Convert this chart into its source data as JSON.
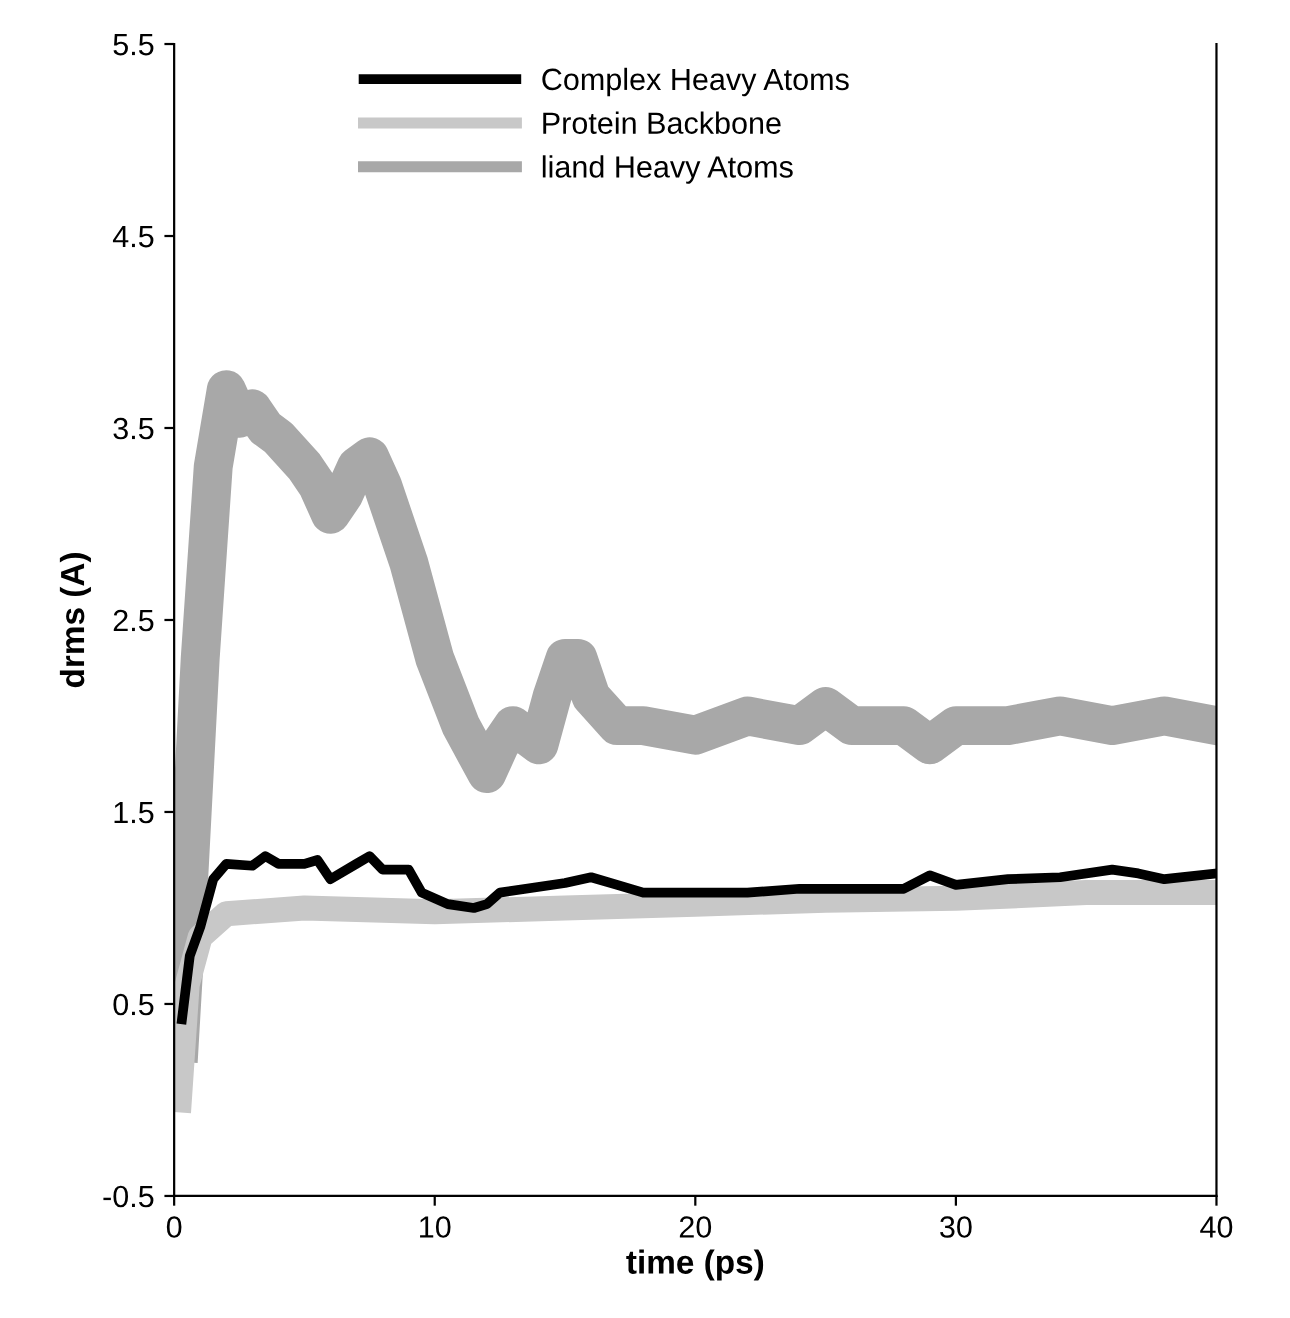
{
  "chart_data": {
    "type": "line",
    "xlabel": "time (ps)",
    "ylabel": "drms (A)",
    "xlim": [
      0,
      40
    ],
    "ylim": [
      -0.5,
      5.5
    ],
    "xticks": [
      0,
      10,
      20,
      30,
      40
    ],
    "yticks": [
      -0.5,
      0.5,
      1.5,
      2.5,
      3.5,
      4.5,
      5.5
    ],
    "grid": false,
    "legend": "top left",
    "line_style": "solid",
    "marker": "none",
    "series": [
      {
        "name": "Complex Heavy Atoms",
        "color": "#000000",
        "x": [
          0.3,
          0.6,
          1,
          1.5,
          2,
          3,
          3.5,
          4,
          5,
          5.5,
          6,
          7,
          7.5,
          8,
          9,
          9.5,
          10.5,
          11.5,
          12,
          12.5,
          13.5,
          15,
          16,
          17,
          18,
          20,
          22,
          24,
          26,
          28,
          29,
          30,
          32,
          34,
          36,
          37,
          38,
          40
        ],
        "values": [
          0.42,
          0.75,
          0.9,
          1.15,
          1.23,
          1.22,
          1.27,
          1.23,
          1.23,
          1.25,
          1.15,
          1.23,
          1.27,
          1.2,
          1.2,
          1.08,
          1.02,
          1.0,
          1.02,
          1.08,
          1.1,
          1.13,
          1.16,
          1.12,
          1.08,
          1.08,
          1.08,
          1.1,
          1.1,
          1.1,
          1.17,
          1.12,
          1.15,
          1.16,
          1.2,
          1.18,
          1.15,
          1.18
        ]
      },
      {
        "name": "Protein Backbone",
        "color": "#c8c8c8",
        "x": [
          0.2,
          0.5,
          1,
          2,
          5,
          10,
          15,
          20,
          25,
          30,
          35,
          40
        ],
        "values": [
          0.0,
          0.6,
          0.85,
          0.97,
          1.0,
          0.98,
          1.0,
          1.02,
          1.04,
          1.05,
          1.08,
          1.08
        ]
      },
      {
        "name": "liand Heavy Atoms",
        "color": "#a8a8a8",
        "x": [
          0.2,
          0.5,
          1,
          1.5,
          2,
          2.5,
          3,
          3.5,
          4,
          5,
          5.5,
          6,
          6.5,
          7,
          7.5,
          8,
          9,
          10,
          11,
          12,
          12.5,
          13,
          14,
          14.5,
          15,
          15.5,
          16,
          17,
          18,
          20,
          22,
          24,
          25,
          26,
          28,
          29,
          30,
          32,
          34,
          36,
          38,
          40
        ],
        "values": [
          0.3,
          1.0,
          2.3,
          3.3,
          3.7,
          3.55,
          3.6,
          3.5,
          3.45,
          3.3,
          3.2,
          3.05,
          3.15,
          3.3,
          3.35,
          3.2,
          2.8,
          2.3,
          1.95,
          1.7,
          1.85,
          1.95,
          1.85,
          2.1,
          2.3,
          2.3,
          2.1,
          1.95,
          1.95,
          1.9,
          2.0,
          1.95,
          2.05,
          1.95,
          1.95,
          1.85,
          1.95,
          1.95,
          2.0,
          1.95,
          2.0,
          1.95
        ]
      }
    ]
  }
}
